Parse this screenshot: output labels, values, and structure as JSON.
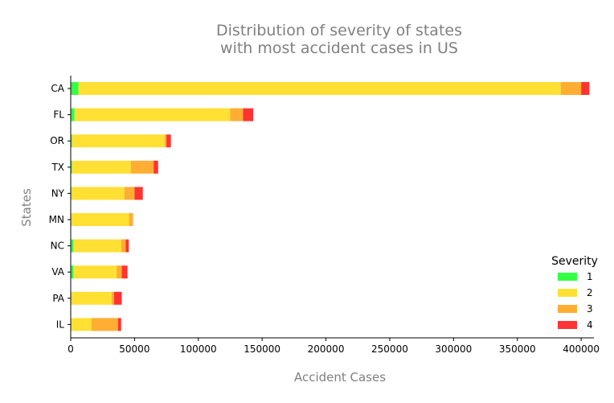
{
  "chart_data": {
    "type": "bar",
    "orientation": "horizontal",
    "stacked": true,
    "title_lines": [
      "Distribution of severity of states",
      "with most accident cases in US"
    ],
    "xlabel": "Accident Cases",
    "ylabel": "States",
    "xlim": [
      0,
      410000
    ],
    "xticks": [
      0,
      50000,
      100000,
      150000,
      200000,
      250000,
      300000,
      350000,
      400000
    ],
    "xtick_labels": [
      "0",
      "50000",
      "100000",
      "150000",
      "200000",
      "250000",
      "300000",
      "350000",
      "400000"
    ],
    "categories": [
      "CA",
      "FL",
      "OR",
      "TX",
      "NY",
      "MN",
      "NC",
      "VA",
      "PA",
      "IL"
    ],
    "series": [
      {
        "name": "1",
        "color": "#33ff44",
        "values": [
          6000,
          3000,
          1000,
          1000,
          500,
          200,
          2000,
          2000,
          200,
          200
        ]
      },
      {
        "name": "2",
        "color": "#ffe033",
        "values": [
          378000,
          122000,
          72500,
          46000,
          41500,
          45500,
          37500,
          34000,
          31800,
          16000
        ]
      },
      {
        "name": "3",
        "color": "#ffad33",
        "values": [
          16000,
          10000,
          1500,
          18000,
          8000,
          3000,
          3500,
          4000,
          2000,
          20800
        ]
      },
      {
        "name": "4",
        "color": "#ff3333",
        "values": [
          6500,
          8000,
          3500,
          3500,
          6500,
          100,
          2500,
          4500,
          6000,
          2500
        ]
      }
    ],
    "legend": {
      "title": "Severity",
      "position": "right"
    },
    "grid": false
  }
}
